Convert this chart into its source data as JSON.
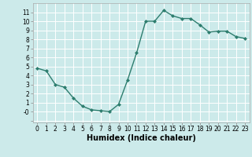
{
  "x": [
    0,
    1,
    2,
    3,
    4,
    5,
    6,
    7,
    8,
    9,
    10,
    11,
    12,
    13,
    14,
    15,
    16,
    17,
    18,
    19,
    20,
    21,
    22,
    23
  ],
  "y": [
    4.8,
    4.5,
    3.0,
    2.7,
    1.5,
    0.6,
    0.2,
    0.1,
    0.0,
    0.8,
    3.5,
    6.5,
    10.0,
    10.0,
    11.2,
    10.6,
    10.3,
    10.3,
    9.6,
    8.8,
    8.9,
    8.9,
    8.3,
    8.1
  ],
  "line_color": "#2d7d6e",
  "marker": "D",
  "marker_size": 2,
  "bg_color": "#cceaea",
  "grid_color": "#ffffff",
  "xlabel": "Humidex (Indice chaleur)",
  "xlim": [
    -0.5,
    23.5
  ],
  "ylim": [
    -1.2,
    12
  ],
  "ytick_labels": [
    "",
    "0-",
    "1",
    "2",
    "3",
    "4",
    "5",
    "6",
    "7",
    "8",
    "9",
    "10",
    "11"
  ],
  "ytick_values": [
    -1,
    0,
    1,
    2,
    3,
    4,
    5,
    6,
    7,
    8,
    9,
    10,
    11
  ],
  "xticks": [
    0,
    1,
    2,
    3,
    4,
    5,
    6,
    7,
    8,
    9,
    10,
    11,
    12,
    13,
    14,
    15,
    16,
    17,
    18,
    19,
    20,
    21,
    22,
    23
  ],
  "tick_fontsize": 5.5,
  "xlabel_fontsize": 7
}
